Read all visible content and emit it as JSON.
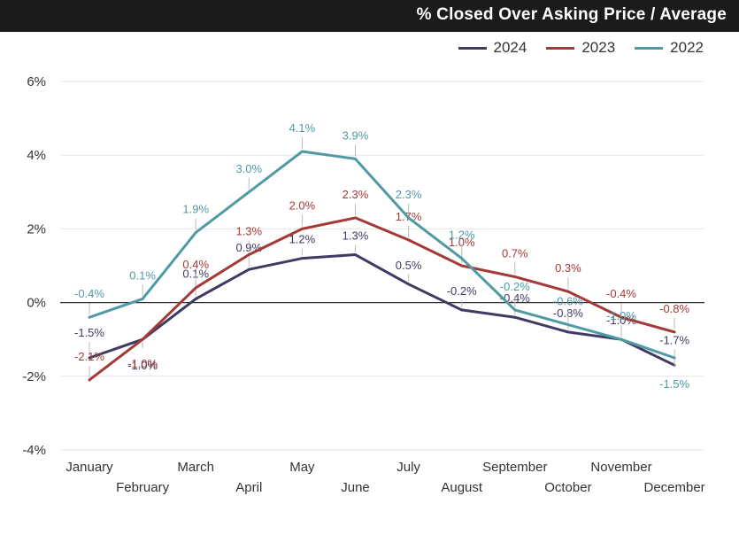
{
  "header": {
    "title": "% Closed Over Asking Price / Average"
  },
  "colors": {
    "2024": "#3d3b63",
    "2023": "#a33a37",
    "2022": "#4f9aa4",
    "zero_line": "#333333",
    "grid": "#e6e6e6"
  },
  "chart_data": {
    "type": "line",
    "title": "% Closed Over Asking Price / Average",
    "xlabel": "",
    "ylabel": "",
    "ylim": [
      -4,
      6
    ],
    "yticks": [
      6,
      4,
      2,
      0,
      -2,
      -4
    ],
    "ytick_labels": [
      "6%",
      "4%",
      "2%",
      "0%",
      "-2%",
      "-4%"
    ],
    "grid": true,
    "legend_position": "top-right",
    "categories": [
      "January",
      "February",
      "March",
      "April",
      "May",
      "June",
      "July",
      "August",
      "September",
      "October",
      "November",
      "December"
    ],
    "series": [
      {
        "name": "2024",
        "color": "#3d3b63",
        "values": [
          -1.5,
          -1.0,
          0.1,
          0.9,
          1.2,
          1.3,
          0.5,
          -0.2,
          -0.4,
          -0.8,
          -1.0,
          -1.7
        ],
        "labels": [
          "-1.5%",
          "-1.0%",
          "0.1%",
          "0.9%",
          "1.2%",
          "1.3%",
          "0.5%",
          "-0.2%",
          "-0.4%",
          "-0.8%",
          "-1.0%",
          "-1.7%"
        ]
      },
      {
        "name": "2023",
        "color": "#a33a37",
        "values": [
          -2.1,
          -1.0,
          0.4,
          1.3,
          2.0,
          2.3,
          1.7,
          1.0,
          0.7,
          0.3,
          -0.4,
          -0.8
        ],
        "labels": [
          "-2.1%",
          "-1.0%",
          "0.4%",
          "1.3%",
          "2.0%",
          "2.3%",
          "1.7%",
          "1.0%",
          "0.7%",
          "0.3%",
          "-0.4%",
          "-0.8%"
        ]
      },
      {
        "name": "2022",
        "color": "#4f9aa4",
        "values": [
          -0.4,
          0.1,
          1.9,
          3.0,
          4.1,
          3.9,
          2.3,
          1.2,
          -0.2,
          -0.6,
          -1.0,
          -1.5
        ],
        "labels": [
          "-0.4%",
          "0.1%",
          "1.9%",
          "3.0%",
          "4.1%",
          "3.9%",
          "2.3%",
          "1.2%",
          "-0.2%",
          "-0.6%",
          "-1.0%",
          "-1.5%"
        ]
      }
    ]
  }
}
